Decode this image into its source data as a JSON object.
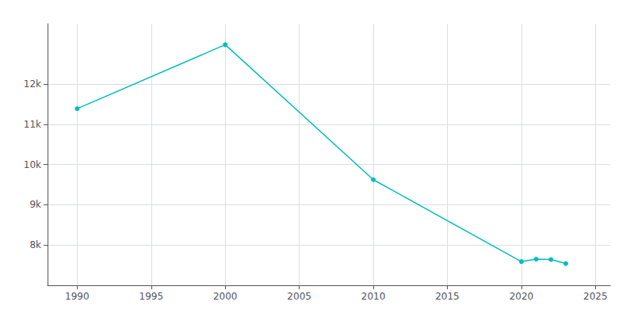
{
  "chart_data": {
    "type": "line",
    "x": [
      1990,
      2000,
      2010,
      2020,
      2021,
      2022,
      2023
    ],
    "values": [
      11390,
      12980,
      9625,
      7590,
      7650,
      7640,
      7540
    ],
    "color": "#00BEBE",
    "marker": "circle",
    "xlim": [
      1988,
      2026
    ],
    "xticks": [
      1990,
      1995,
      2000,
      2005,
      2010,
      2015,
      2020,
      2025
    ],
    "ylim": [
      7000,
      13500
    ],
    "yticks": [
      {
        "value": 8000,
        "label": "8k"
      },
      {
        "value": 9000,
        "label": "9k"
      },
      {
        "value": 10000,
        "label": "10k"
      },
      {
        "value": 11000,
        "label": "11k"
      },
      {
        "value": 12000,
        "label": "12k"
      }
    ],
    "grid": true
  }
}
